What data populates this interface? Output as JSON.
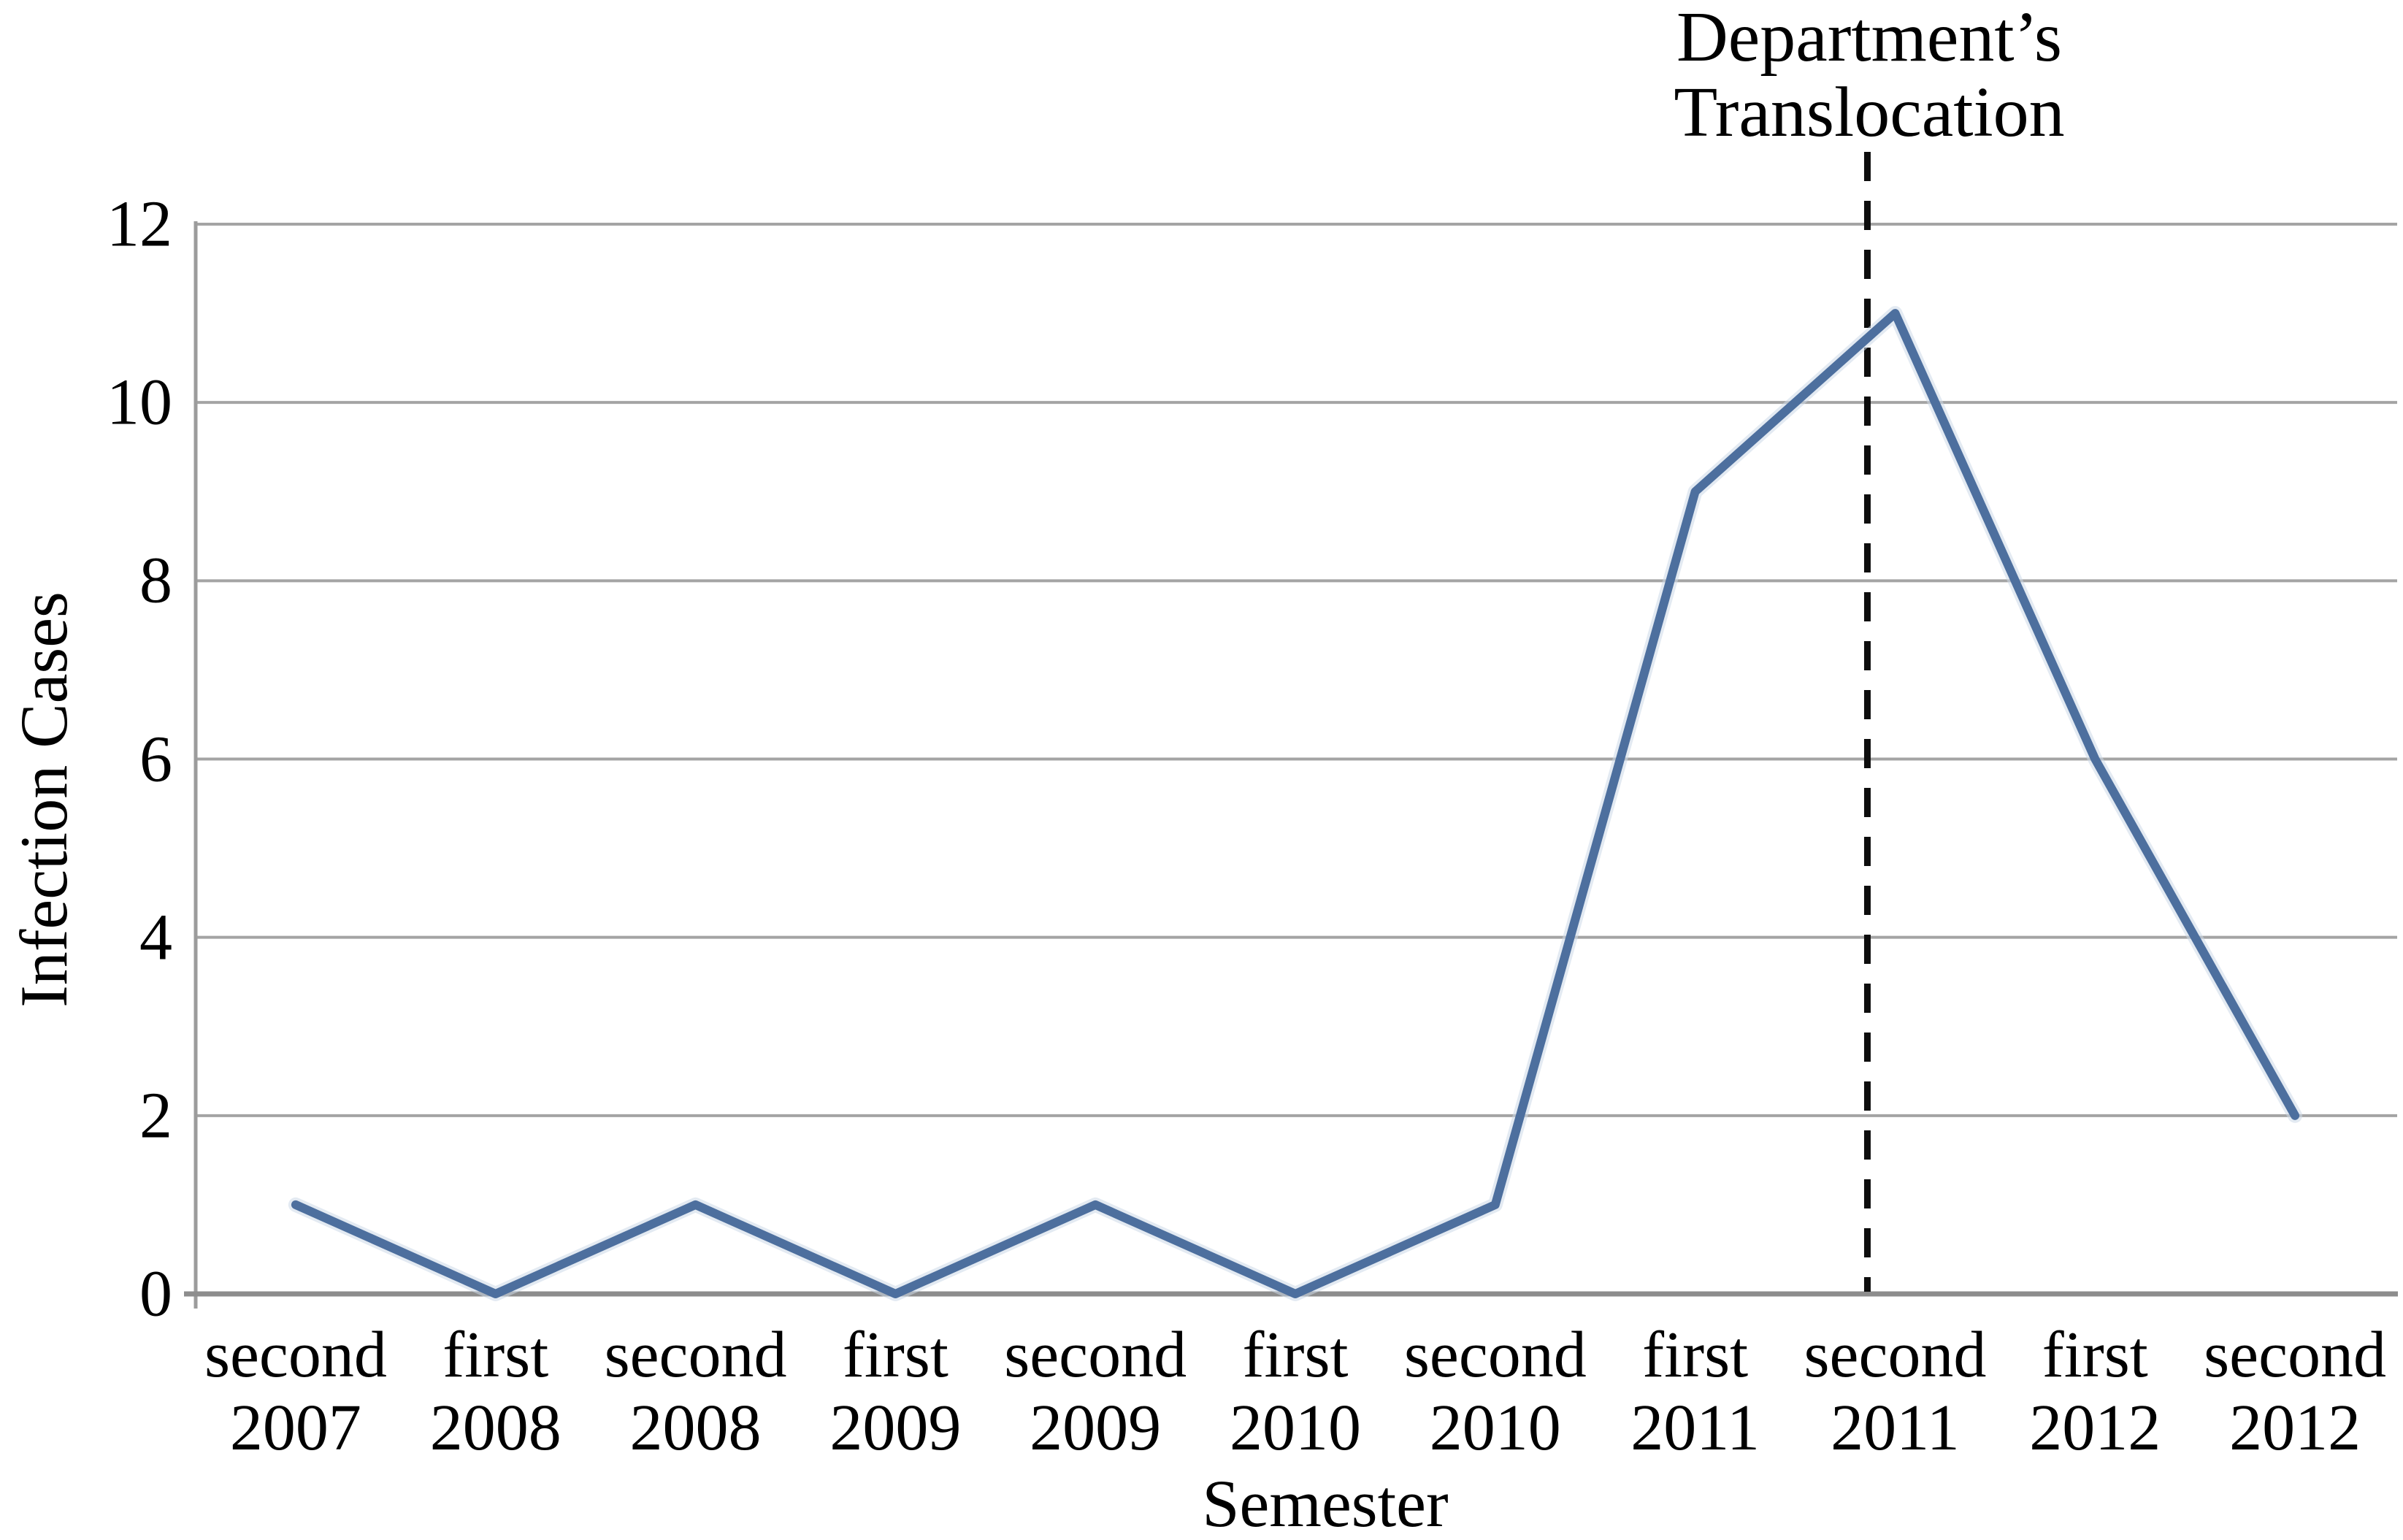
{
  "chart_data": {
    "type": "line",
    "title": "",
    "categories": [
      {
        "semester": "second",
        "year": "2007"
      },
      {
        "semester": "first",
        "year": "2008"
      },
      {
        "semester": "second",
        "year": "2008"
      },
      {
        "semester": "first",
        "year": "2009"
      },
      {
        "semester": "second",
        "year": "2009"
      },
      {
        "semester": "first",
        "year": "2010"
      },
      {
        "semester": "second",
        "year": "2010"
      },
      {
        "semester": "first",
        "year": "2011"
      },
      {
        "semester": "second",
        "year": "2011"
      },
      {
        "semester": "first",
        "year": "2012"
      },
      {
        "semester": "second",
        "year": "2012"
      }
    ],
    "values": [
      1,
      0,
      1,
      0,
      1,
      0,
      1,
      9,
      11,
      6,
      2
    ],
    "xlabel": "Semester",
    "ylabel": "Infection Cases",
    "ylim": [
      0,
      12
    ],
    "yticks": [
      0,
      2,
      4,
      6,
      8,
      10,
      12
    ],
    "grid": true,
    "legend_position": "none",
    "annotation": {
      "text_line1": "Department’s",
      "text_line2": "Translocation",
      "at_category": "second 2011",
      "marker": "vertical-dashed-line"
    },
    "colors": {
      "line": "#4d6f9e",
      "line_halo": "#ccd9e8",
      "grid": "#a4a4a4",
      "x_axis": "#8d8d8d",
      "y_axis": "#9c9c9c",
      "dashed_line": "#0d0d0d",
      "text": "#000000",
      "background": "#ffffff"
    }
  }
}
